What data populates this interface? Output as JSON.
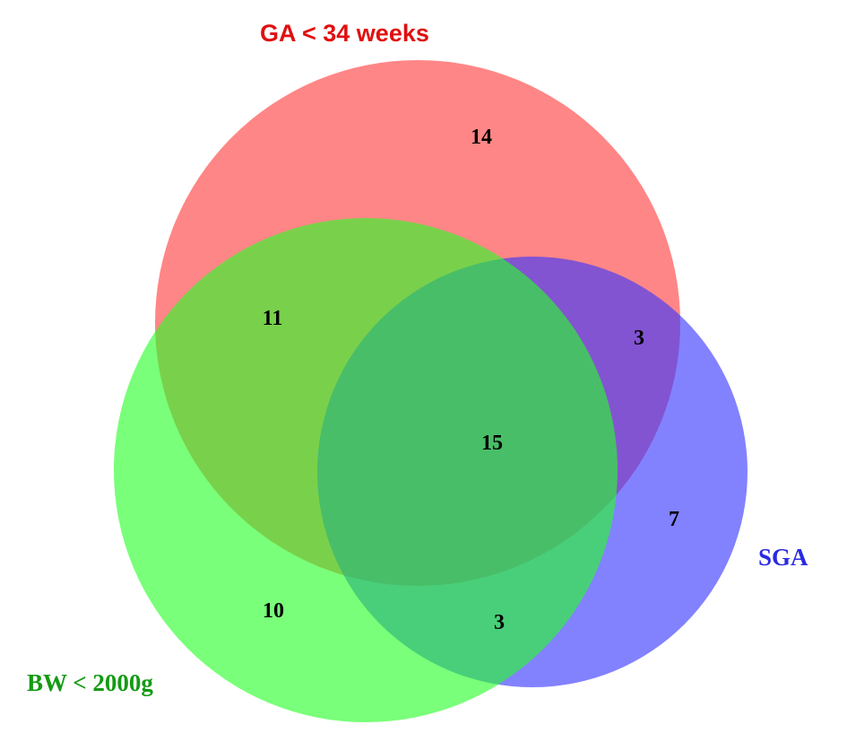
{
  "sets": {
    "ga": {
      "label": "GA < 34 weeks",
      "color": "#ff3b3b"
    },
    "bw": {
      "label": "BW < 2000g",
      "color": "#27ff27"
    },
    "sga": {
      "label": "SGA",
      "color": "#3535ff"
    }
  },
  "regions": {
    "ga_only": "14",
    "ga_bw": "11",
    "ga_sga": "3",
    "all_three": "15",
    "sga_only": "7",
    "bw_only": "10",
    "bw_sga": "3"
  }
}
